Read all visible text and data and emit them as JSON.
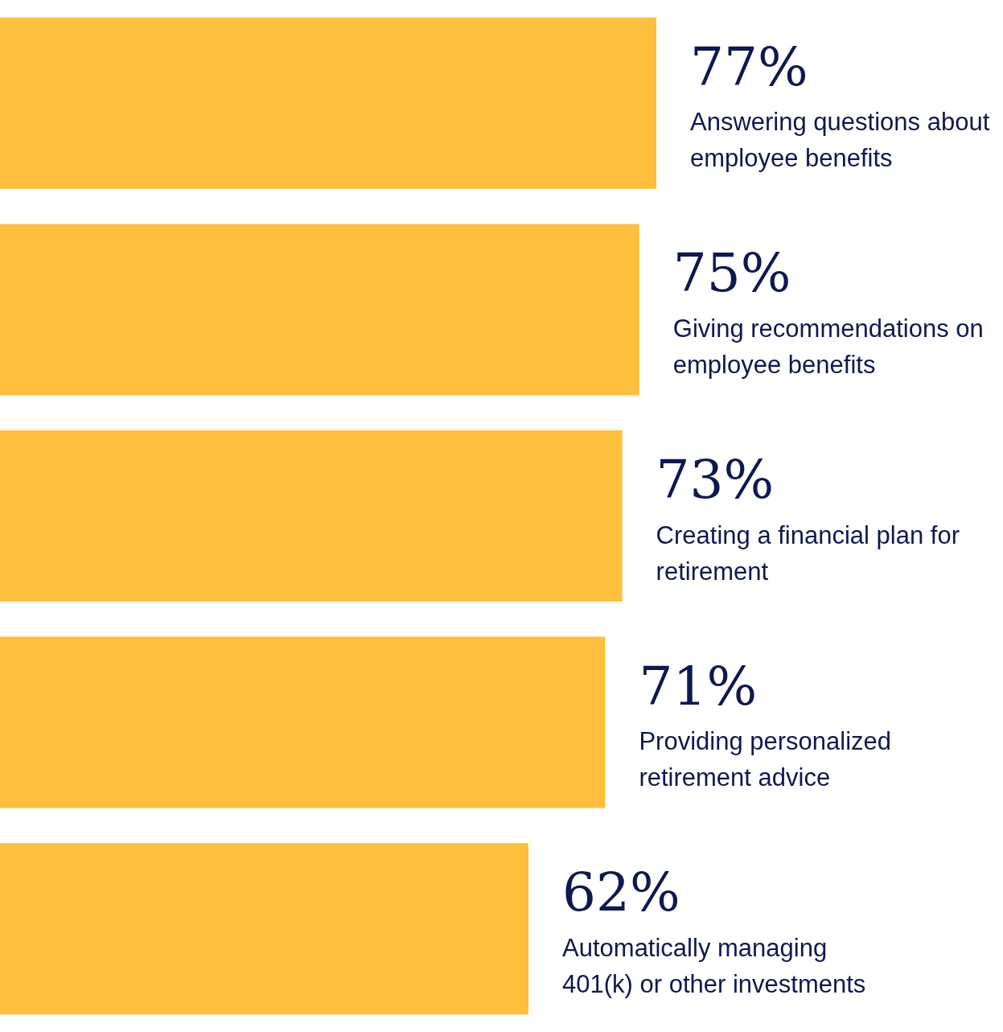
{
  "chart_data": {
    "type": "bar",
    "orientation": "horizontal",
    "categories": [
      null,
      null,
      null,
      null,
      null
    ],
    "values": [
      77,
      75,
      73,
      71,
      62
    ],
    "value_labels": [
      "77%",
      "75%",
      "73%",
      "71%",
      "62%"
    ],
    "annotations": [
      "Answering questions about employee benefits",
      "Giving recommendations on employee benefits",
      "Creating a financial plan for retirement",
      "Providing personalized retirement advice",
      "Automatically managing 401(k) or other investments"
    ],
    "color": "#fdbf3c",
    "tick_labels": false
  }
}
